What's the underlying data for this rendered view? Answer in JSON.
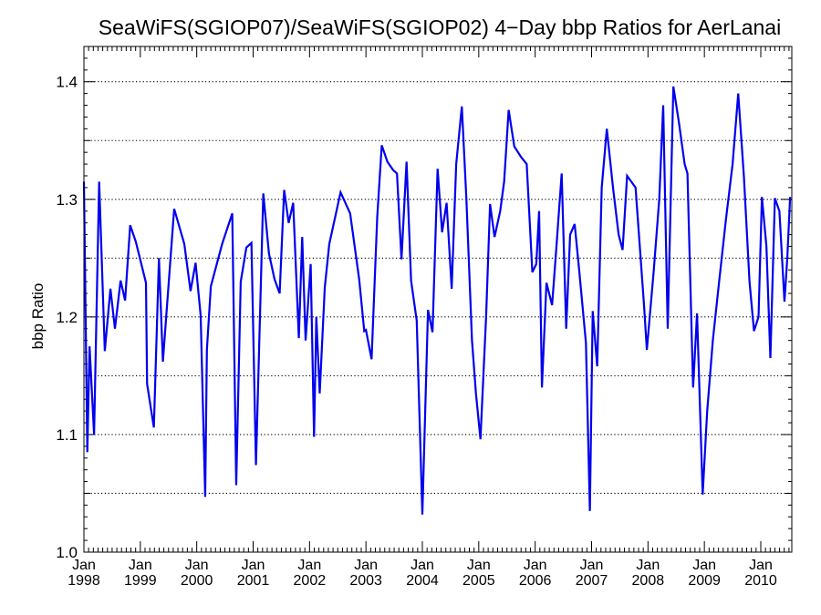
{
  "chart_data": {
    "type": "line",
    "title": "SeaWiFS(SGIOP07)/SeaWiFS(SGIOP02) 4−Day bbp Ratios for AerLanai",
    "xlabel": "",
    "ylabel": "bbp Ratio",
    "xlim": [
      1998.0,
      2010.55
    ],
    "ylim": [
      1.0,
      1.43
    ],
    "grid": true,
    "grid_style": "dotted-horizontal",
    "y_ticks": [
      1.0,
      1.1,
      1.2,
      1.3,
      1.4
    ],
    "y_tick_labels": [
      "1.0",
      "1.1",
      "1.2",
      "1.3",
      "1.4"
    ],
    "y_grid": [
      1.05,
      1.1,
      1.15,
      1.2,
      1.25,
      1.3,
      1.35,
      1.4
    ],
    "x_ticks": [
      {
        "x": 1998,
        "month": "Jan",
        "year": "1998"
      },
      {
        "x": 1999,
        "month": "Jan",
        "year": "1999"
      },
      {
        "x": 2000,
        "month": "Jan",
        "year": "2000"
      },
      {
        "x": 2001,
        "month": "Jan",
        "year": "2001"
      },
      {
        "x": 2002,
        "month": "Jan",
        "year": "2002"
      },
      {
        "x": 2003,
        "month": "Jan",
        "year": "2003"
      },
      {
        "x": 2004,
        "month": "Jan",
        "year": "2004"
      },
      {
        "x": 2005,
        "month": "Jan",
        "year": "2005"
      },
      {
        "x": 2006,
        "month": "Jan",
        "year": "2006"
      },
      {
        "x": 2007,
        "month": "Jan",
        "year": "2007"
      },
      {
        "x": 2008,
        "month": "Jan",
        "year": "2008"
      },
      {
        "x": 2009,
        "month": "Jan",
        "year": "2009"
      },
      {
        "x": 2010,
        "month": "Jan",
        "year": "2010"
      }
    ],
    "series": [
      {
        "color": "#0000ee",
        "points": [
          [
            1998.0,
            1.315
          ],
          [
            1998.06,
            1.085
          ],
          [
            1998.1,
            1.175
          ],
          [
            1998.18,
            1.1
          ],
          [
            1998.27,
            1.315
          ],
          [
            1998.37,
            1.171
          ],
          [
            1998.47,
            1.224
          ],
          [
            1998.55,
            1.19
          ],
          [
            1998.65,
            1.231
          ],
          [
            1998.73,
            1.214
          ],
          [
            1998.82,
            1.278
          ],
          [
            1998.92,
            1.264
          ],
          [
            1999.1,
            1.229
          ],
          [
            1999.12,
            1.143
          ],
          [
            1999.24,
            1.106
          ],
          [
            1999.33,
            1.25
          ],
          [
            1999.4,
            1.162
          ],
          [
            1999.6,
            1.292
          ],
          [
            1999.78,
            1.262
          ],
          [
            1999.89,
            1.222
          ],
          [
            1999.98,
            1.246
          ],
          [
            2000.07,
            1.201
          ],
          [
            2000.15,
            1.047
          ],
          [
            2000.18,
            1.172
          ],
          [
            2000.25,
            1.226
          ],
          [
            2000.45,
            1.262
          ],
          [
            2000.63,
            1.288
          ],
          [
            2000.7,
            1.057
          ],
          [
            2000.78,
            1.23
          ],
          [
            2000.88,
            1.259
          ],
          [
            2000.97,
            1.263
          ],
          [
            2001.05,
            1.074
          ],
          [
            2001.18,
            1.305
          ],
          [
            2001.28,
            1.254
          ],
          [
            2001.38,
            1.232
          ],
          [
            2001.47,
            1.22
          ],
          [
            2001.55,
            1.308
          ],
          [
            2001.63,
            1.28
          ],
          [
            2001.71,
            1.297
          ],
          [
            2001.81,
            1.182
          ],
          [
            2001.87,
            1.268
          ],
          [
            2001.93,
            1.18
          ],
          [
            2002.02,
            1.245
          ],
          [
            2002.08,
            1.098
          ],
          [
            2002.12,
            1.2
          ],
          [
            2002.18,
            1.135
          ],
          [
            2002.27,
            1.225
          ],
          [
            2002.35,
            1.262
          ],
          [
            2002.55,
            1.306
          ],
          [
            2002.72,
            1.288
          ],
          [
            2002.88,
            1.232
          ],
          [
            2002.97,
            1.188
          ],
          [
            2003.0,
            1.189
          ],
          [
            2003.1,
            1.164
          ],
          [
            2003.2,
            1.285
          ],
          [
            2003.28,
            1.346
          ],
          [
            2003.38,
            1.332
          ],
          [
            2003.48,
            1.325
          ],
          [
            2003.55,
            1.322
          ],
          [
            2003.63,
            1.249
          ],
          [
            2003.72,
            1.332
          ],
          [
            2003.8,
            1.231
          ],
          [
            2003.9,
            1.197
          ],
          [
            2004.0,
            1.032
          ],
          [
            2004.1,
            1.206
          ],
          [
            2004.18,
            1.187
          ],
          [
            2004.27,
            1.326
          ],
          [
            2004.35,
            1.272
          ],
          [
            2004.43,
            1.297
          ],
          [
            2004.52,
            1.224
          ],
          [
            2004.6,
            1.33
          ],
          [
            2004.7,
            1.379
          ],
          [
            2004.78,
            1.301
          ],
          [
            2004.88,
            1.18
          ],
          [
            2004.95,
            1.135
          ],
          [
            2005.03,
            1.096
          ],
          [
            2005.13,
            1.2
          ],
          [
            2005.2,
            1.296
          ],
          [
            2005.28,
            1.268
          ],
          [
            2005.38,
            1.29
          ],
          [
            2005.45,
            1.315
          ],
          [
            2005.53,
            1.376
          ],
          [
            2005.63,
            1.345
          ],
          [
            2005.75,
            1.336
          ],
          [
            2005.85,
            1.33
          ],
          [
            2005.95,
            1.238
          ],
          [
            2006.02,
            1.245
          ],
          [
            2006.07,
            1.29
          ],
          [
            2006.12,
            1.14
          ],
          [
            2006.2,
            1.229
          ],
          [
            2006.3,
            1.21
          ],
          [
            2006.37,
            1.255
          ],
          [
            2006.47,
            1.322
          ],
          [
            2006.55,
            1.19
          ],
          [
            2006.62,
            1.27
          ],
          [
            2006.7,
            1.279
          ],
          [
            2006.78,
            1.24
          ],
          [
            2006.9,
            1.178
          ],
          [
            2006.97,
            1.035
          ],
          [
            2007.02,
            1.205
          ],
          [
            2007.1,
            1.158
          ],
          [
            2007.18,
            1.31
          ],
          [
            2007.27,
            1.36
          ],
          [
            2007.38,
            1.31
          ],
          [
            2007.48,
            1.27
          ],
          [
            2007.55,
            1.257
          ],
          [
            2007.63,
            1.32
          ],
          [
            2007.78,
            1.31
          ],
          [
            2007.93,
            1.21
          ],
          [
            2007.98,
            1.172
          ],
          [
            2008.1,
            1.238
          ],
          [
            2008.2,
            1.3
          ],
          [
            2008.27,
            1.38
          ],
          [
            2008.35,
            1.19
          ],
          [
            2008.45,
            1.396
          ],
          [
            2008.55,
            1.365
          ],
          [
            2008.65,
            1.33
          ],
          [
            2008.7,
            1.322
          ],
          [
            2008.8,
            1.14
          ],
          [
            2008.87,
            1.203
          ],
          [
            2008.97,
            1.049
          ],
          [
            2009.05,
            1.12
          ],
          [
            2009.15,
            1.18
          ],
          [
            2009.25,
            1.225
          ],
          [
            2009.38,
            1.282
          ],
          [
            2009.5,
            1.33
          ],
          [
            2009.6,
            1.39
          ],
          [
            2009.7,
            1.32
          ],
          [
            2009.8,
            1.23
          ],
          [
            2009.88,
            1.188
          ],
          [
            2009.96,
            1.2
          ],
          [
            2010.02,
            1.302
          ],
          [
            2010.1,
            1.26
          ],
          [
            2010.17,
            1.165
          ],
          [
            2010.25,
            1.301
          ],
          [
            2010.33,
            1.29
          ],
          [
            2010.42,
            1.213
          ],
          [
            2010.47,
            1.25
          ],
          [
            2010.52,
            1.302
          ]
        ]
      }
    ]
  }
}
